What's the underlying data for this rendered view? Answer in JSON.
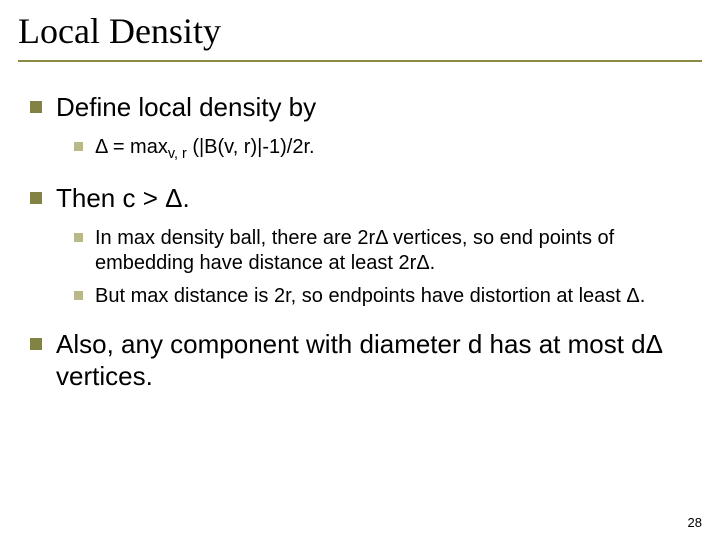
{
  "colors": {
    "title_rule": "#8a8a42",
    "l1_bullet": "#828245",
    "l2_bullet": "#b8b888",
    "text": "#000000",
    "background": "#ffffff"
  },
  "title": "Local Density",
  "bullets": [
    {
      "text": "Define local density by",
      "sub": [
        {
          "html": "Δ = max<span class=\"sub\">v, r</span> (|B(v, r)|-1)/2r."
        }
      ]
    },
    {
      "text": "Then c > Δ.",
      "sub": [
        {
          "html": "In max density ball, there are 2rΔ vertices, so end points of embedding have distance at least 2rΔ."
        },
        {
          "html": "But max distance is 2r, so endpoints have distortion at least Δ."
        }
      ]
    },
    {
      "text": "Also, any component with diameter d has at most dΔ vertices.",
      "sub": []
    }
  ],
  "page_number": "28"
}
